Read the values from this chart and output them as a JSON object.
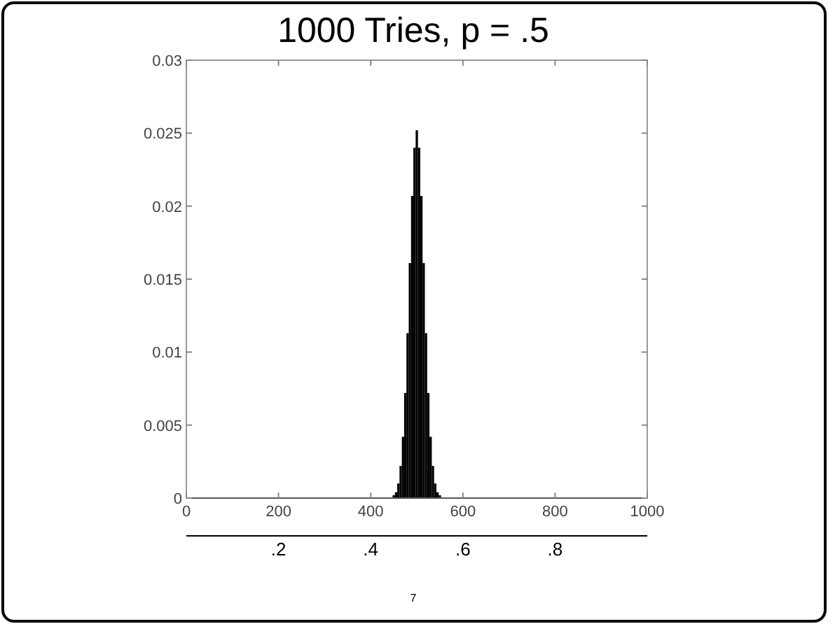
{
  "chart_data": {
    "type": "bar",
    "title": "1000 Tries, p = .5",
    "x": [
      450,
      455,
      460,
      465,
      470,
      475,
      480,
      485,
      490,
      495,
      500,
      505,
      510,
      515,
      520,
      525,
      530,
      535,
      540,
      545,
      550
    ],
    "values": [
      0.0002,
      0.0004,
      0.001,
      0.0022,
      0.0042,
      0.0072,
      0.0113,
      0.0161,
      0.0207,
      0.024,
      0.0252,
      0.024,
      0.0207,
      0.0161,
      0.0113,
      0.0072,
      0.0042,
      0.0022,
      0.001,
      0.0004,
      0.0002
    ],
    "color": "#000000",
    "xlim": [
      0,
      1000
    ],
    "xticks": [
      0,
      200,
      400,
      600,
      800,
      1000
    ],
    "ylim": [
      0,
      0.03
    ],
    "yticks": [
      0,
      0.005,
      0.01,
      0.015,
      0.02,
      0.025,
      0.03
    ],
    "x2lim": [
      0,
      1
    ],
    "x2ticks": [
      {
        "value": 0.2,
        "label": ".2"
      },
      {
        "value": 0.4,
        "label": ".4"
      },
      {
        "value": 0.6,
        "label": ".6"
      },
      {
        "value": 0.8,
        "label": ".8"
      }
    ],
    "grid": false,
    "annotations": [
      "7"
    ]
  }
}
